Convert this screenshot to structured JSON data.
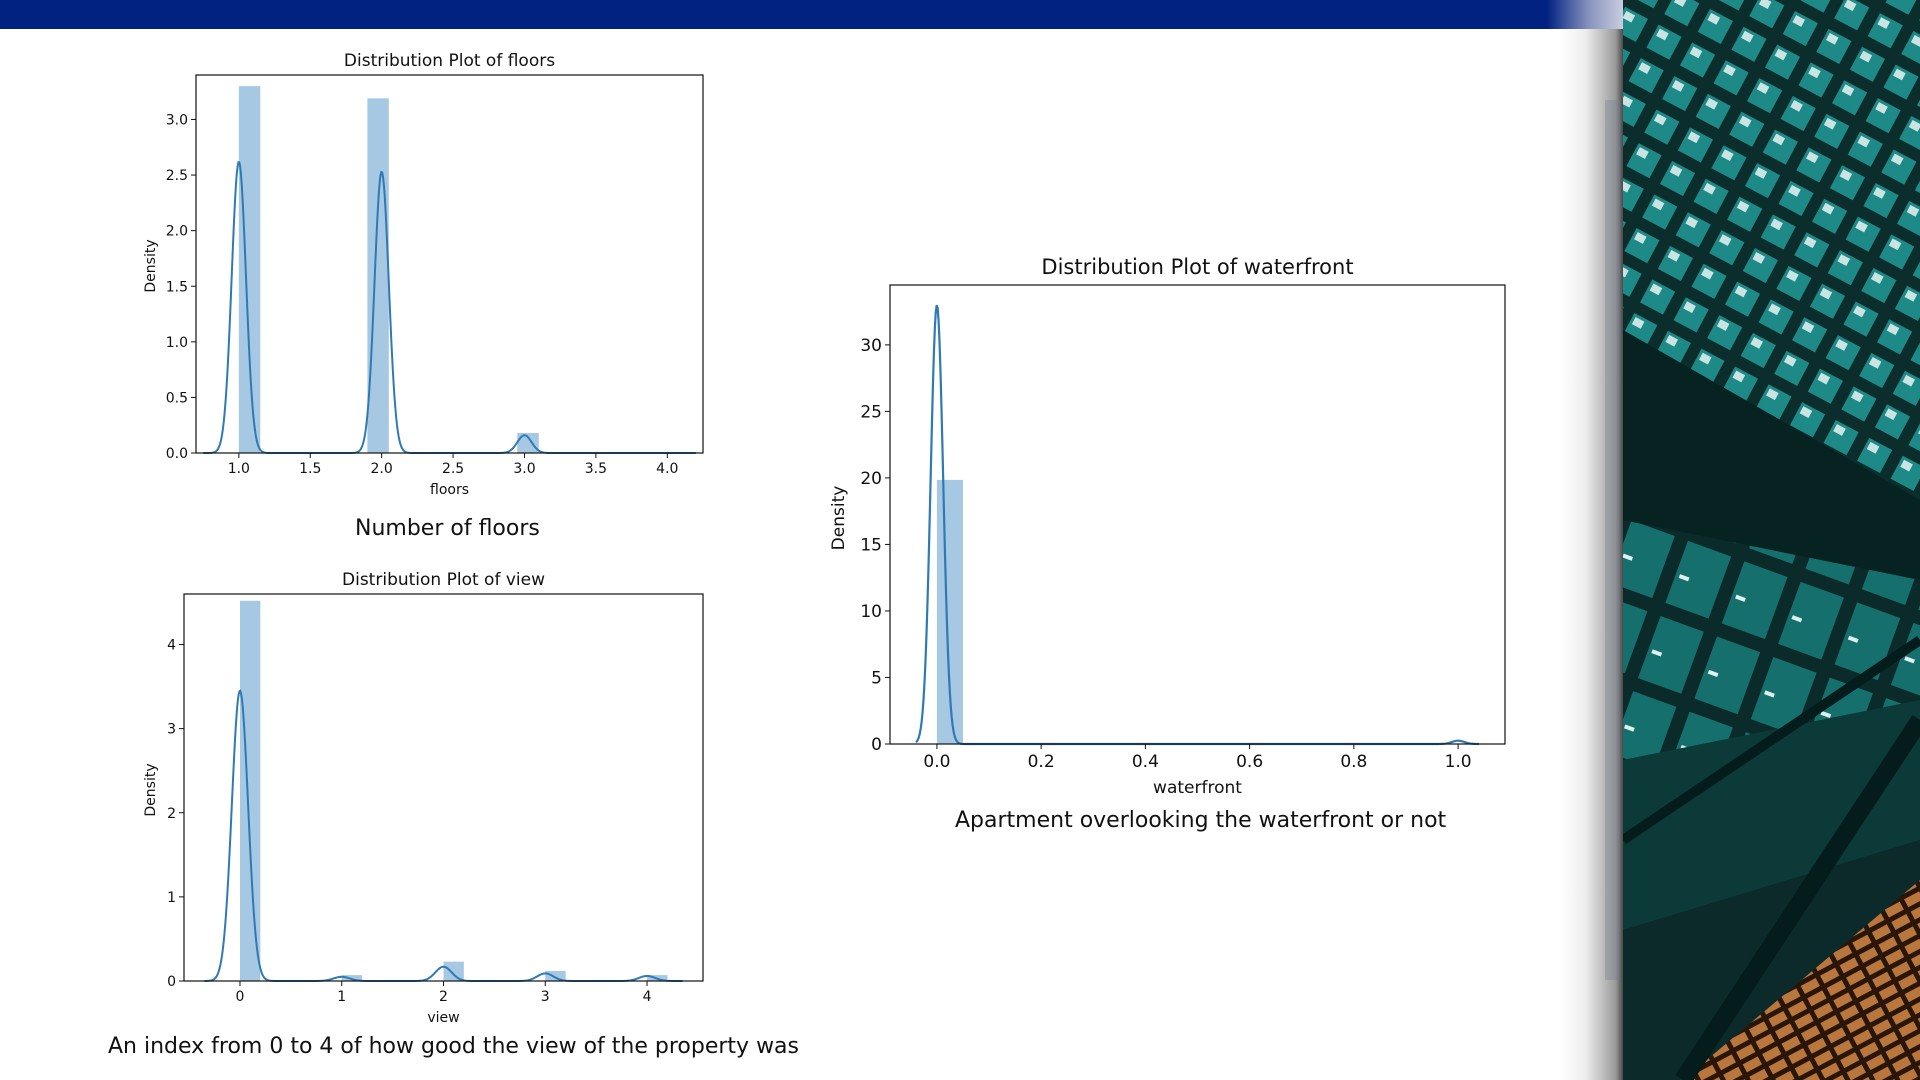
{
  "captions": {
    "floors": "Number of floors",
    "view": "An index from 0 to 4 of how good the view of the property was",
    "waterfront": "Apartment overlooking the waterfront or not"
  },
  "colors": {
    "top_bar": "#022282",
    "bar_fill": "#a6c8e3",
    "kde_line": "#2f7ab4"
  },
  "chart_data": [
    {
      "type": "bar",
      "title": "Distribution Plot of floors",
      "xlabel": "floors",
      "ylabel": "Density",
      "xlim": [
        0.7,
        4.25
      ],
      "ylim": [
        0,
        3.4
      ],
      "xticks": [
        1.0,
        1.5,
        2.0,
        2.5,
        3.0,
        3.5,
        4.0
      ],
      "xtick_labels": [
        "1.0",
        "1.5",
        "2.0",
        "2.5",
        "3.0",
        "3.5",
        "4.0"
      ],
      "yticks": [
        0.0,
        0.5,
        1.0,
        1.5,
        2.0,
        2.5,
        3.0
      ],
      "ytick_labels": [
        "0.0",
        "0.5",
        "1.0",
        "1.5",
        "2.0",
        "2.5",
        "3.0"
      ],
      "bars": [
        {
          "x0": 1.0,
          "x1": 1.15,
          "value": 3.3
        },
        {
          "x0": 1.9,
          "x1": 2.05,
          "value": 3.19
        },
        {
          "x0": 2.95,
          "x1": 3.1,
          "value": 0.18
        }
      ],
      "kde": {
        "peaks": [
          {
            "center": 1.0,
            "height": 2.62,
            "sigma": 0.05
          },
          {
            "center": 2.0,
            "height": 2.53,
            "sigma": 0.05
          },
          {
            "center": 3.0,
            "height": 0.16,
            "sigma": 0.05
          }
        ],
        "range": [
          0.75,
          4.2
        ]
      }
    },
    {
      "type": "bar",
      "title": "Distribution Plot of view",
      "xlabel": "view",
      "ylabel": "Density",
      "xlim": [
        -0.55,
        4.55
      ],
      "ylim": [
        0,
        4.6
      ],
      "xticks": [
        0,
        1,
        2,
        3,
        4
      ],
      "xtick_labels": [
        "0",
        "1",
        "2",
        "3",
        "4"
      ],
      "yticks": [
        0,
        1,
        2,
        3,
        4
      ],
      "ytick_labels": [
        "0",
        "1",
        "2",
        "3",
        "4"
      ],
      "bars": [
        {
          "x0": 0.0,
          "x1": 0.2,
          "value": 4.52
        },
        {
          "x0": 1.0,
          "x1": 1.2,
          "value": 0.07
        },
        {
          "x0": 2.0,
          "x1": 2.2,
          "value": 0.23
        },
        {
          "x0": 3.0,
          "x1": 3.2,
          "value": 0.12
        },
        {
          "x0": 4.0,
          "x1": 4.2,
          "value": 0.07
        }
      ],
      "kde": {
        "peaks": [
          {
            "center": 0.0,
            "height": 3.45,
            "sigma": 0.08
          },
          {
            "center": 1.0,
            "height": 0.05,
            "sigma": 0.08
          },
          {
            "center": 2.0,
            "height": 0.17,
            "sigma": 0.08
          },
          {
            "center": 3.0,
            "height": 0.09,
            "sigma": 0.08
          },
          {
            "center": 4.0,
            "height": 0.06,
            "sigma": 0.08
          }
        ],
        "range": [
          -0.35,
          4.35
        ]
      }
    },
    {
      "type": "bar",
      "title": "Distribution Plot of waterfront",
      "xlabel": "waterfront",
      "ylabel": "Density",
      "xlim": [
        -0.09,
        1.09
      ],
      "ylim": [
        0,
        34.5
      ],
      "xticks": [
        0.0,
        0.2,
        0.4,
        0.6,
        0.8,
        1.0
      ],
      "xtick_labels": [
        "0.0",
        "0.2",
        "0.4",
        "0.6",
        "0.8",
        "1.0"
      ],
      "yticks": [
        0,
        5,
        10,
        15,
        20,
        25,
        30
      ],
      "ytick_labels": [
        "0",
        "5",
        "10",
        "15",
        "20",
        "25",
        "30"
      ],
      "bars": [
        {
          "x0": 0.0,
          "x1": 0.05,
          "value": 19.85
        }
      ],
      "kde": {
        "peaks": [
          {
            "center": 0.0,
            "height": 33.0,
            "sigma": 0.012
          },
          {
            "center": 1.0,
            "height": 0.25,
            "sigma": 0.012
          }
        ],
        "range": [
          -0.04,
          1.04
        ]
      }
    }
  ]
}
